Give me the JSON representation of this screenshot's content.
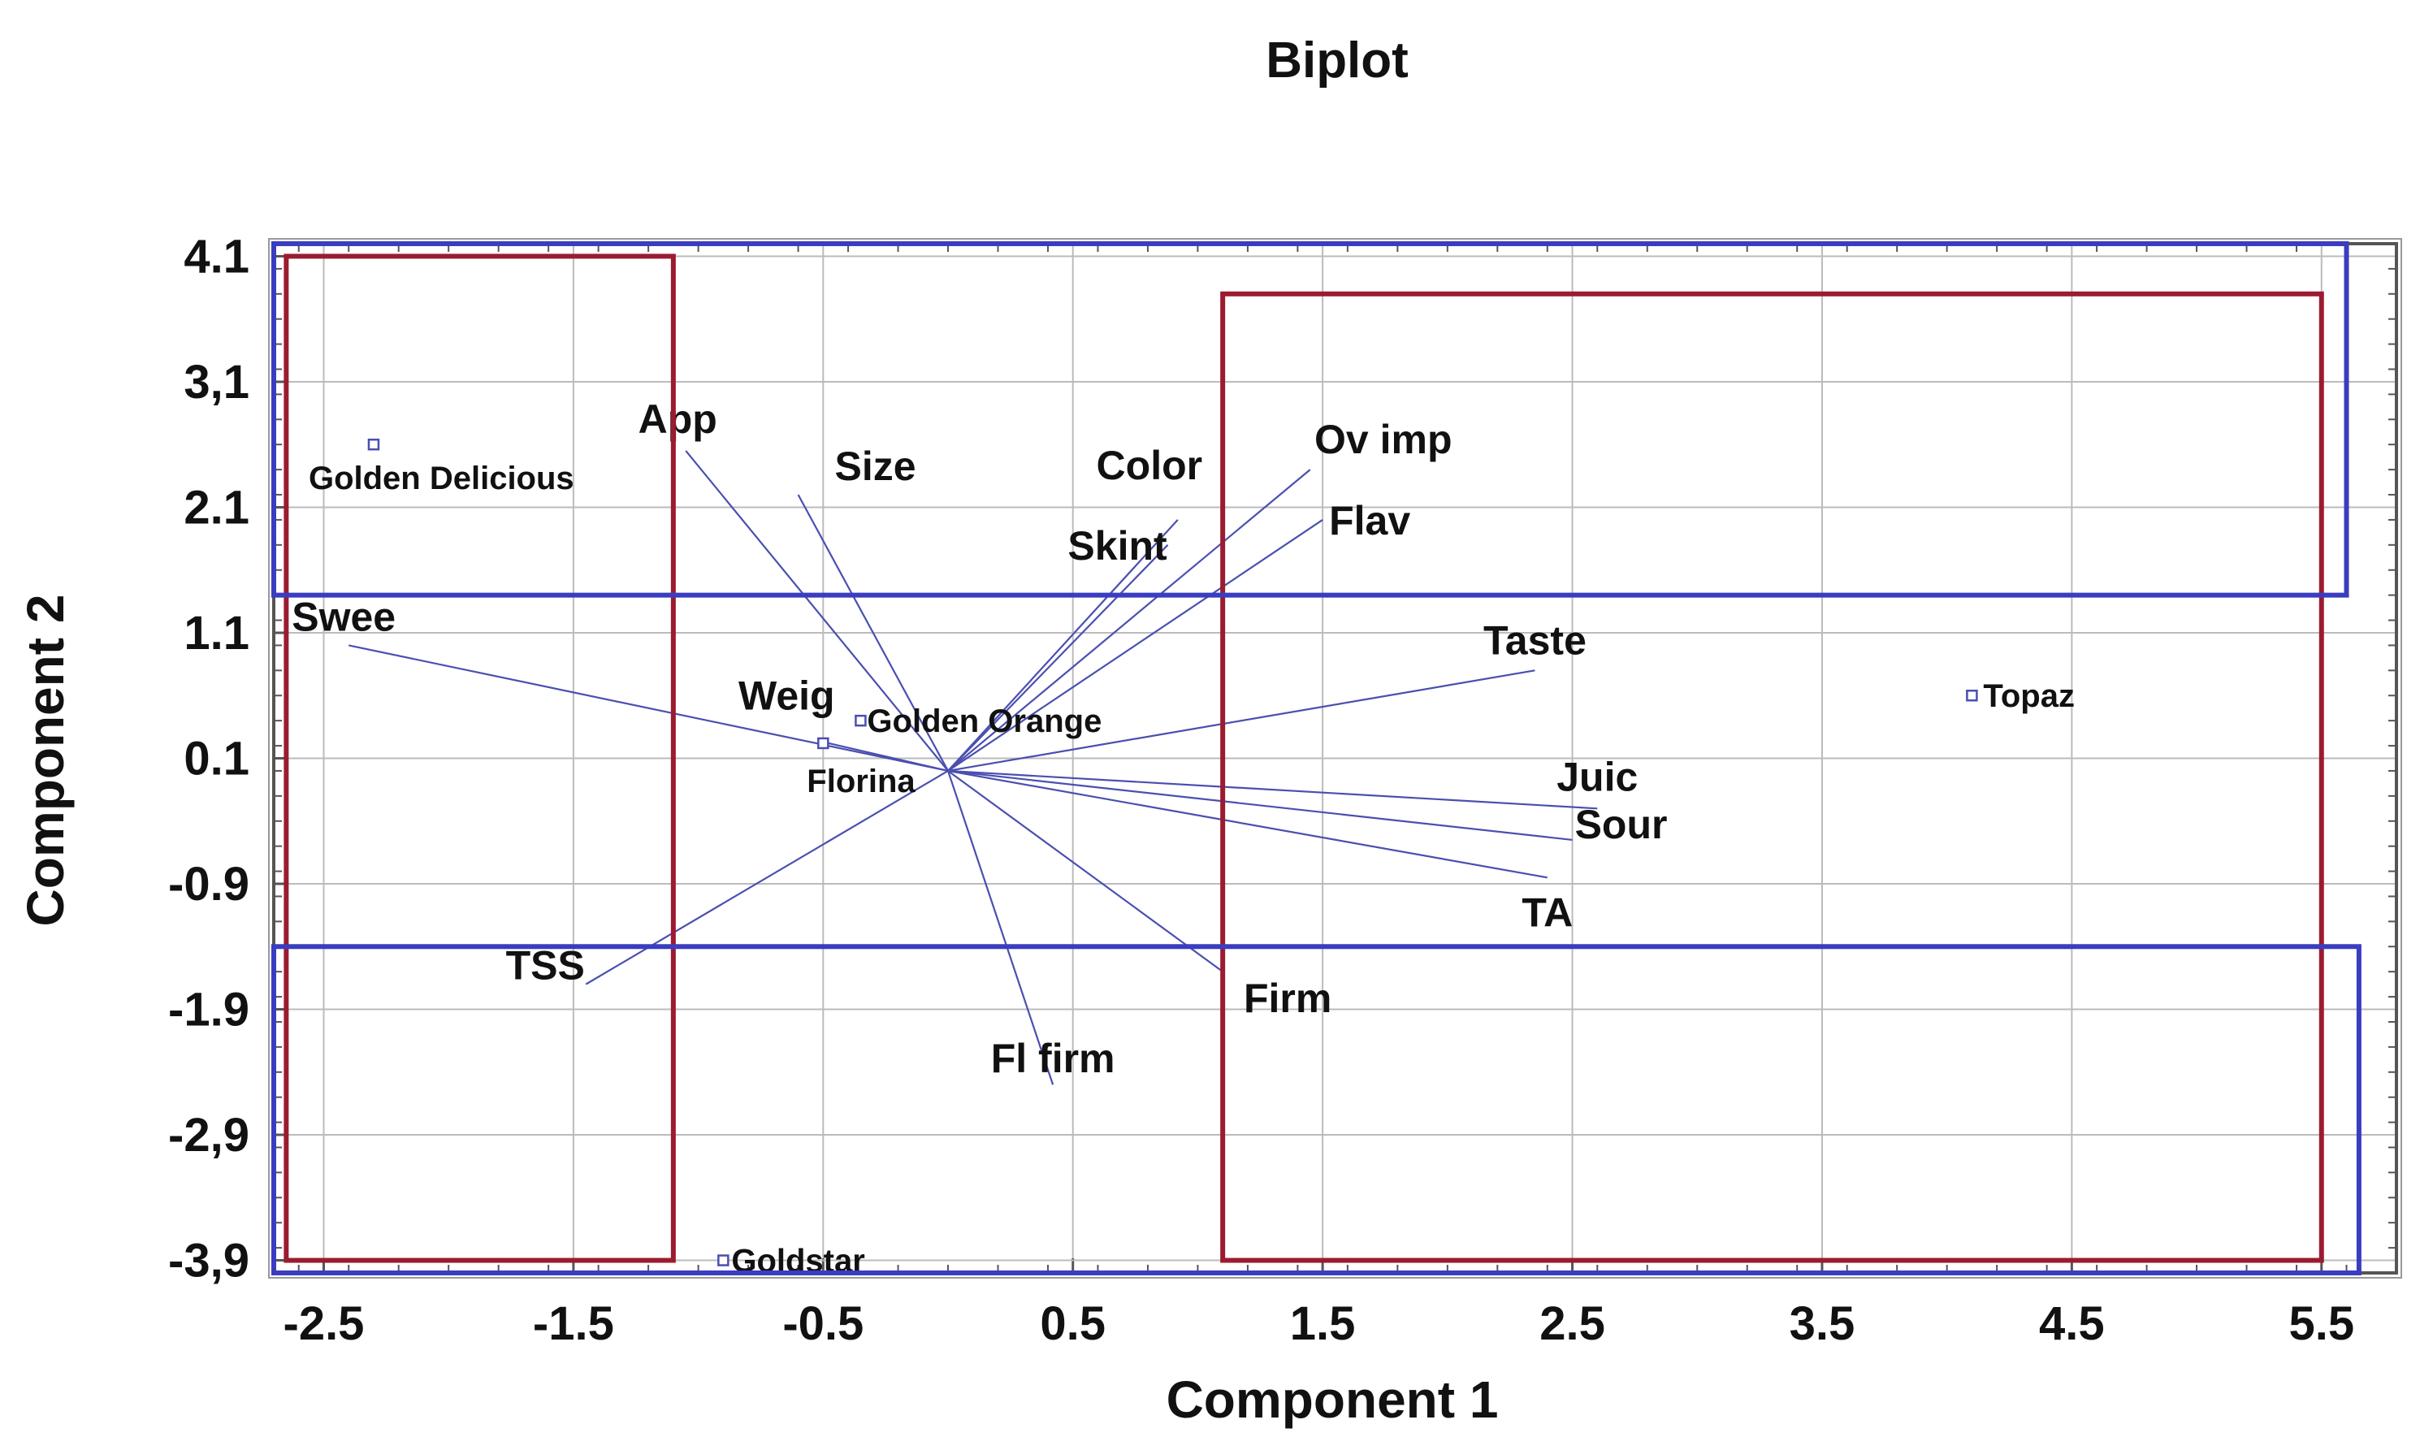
{
  "chart_data": {
    "type": "scatter",
    "title": "Biplot",
    "xlabel": "Component 1",
    "ylabel": "Component 2",
    "xlim": [
      -2.7,
      5.8
    ],
    "ylim": [
      -4.0,
      4.2
    ],
    "xticks": [
      -2.5,
      -1.5,
      -0.5,
      0.5,
      1.5,
      2.5,
      3.5,
      4.5,
      5.5
    ],
    "xtick_labels": [
      "-2.5",
      "-1.5",
      "-0.5",
      "0.5",
      "1.5",
      "2.5",
      "3.5",
      "4.5",
      "5.5"
    ],
    "yticks": [
      4.1,
      3.1,
      2.1,
      1.1,
      0.1,
      -0.9,
      -1.9,
      -2.9,
      -3.9
    ],
    "ytick_labels": [
      "4.1",
      "3,1",
      "2.1",
      "1.1",
      "0.1",
      "-0.9",
      "-1.9",
      "-2,9",
      "-3,9"
    ],
    "grid": true,
    "vector_origin": [
      0.0,
      0.0
    ],
    "vectors": [
      {
        "name": "App",
        "x": -1.05,
        "y": 2.55
      },
      {
        "name": "Size",
        "x": -0.6,
        "y": 2.2
      },
      {
        "name": "Color",
        "x": 0.92,
        "y": 2.0
      },
      {
        "name": "Skint",
        "x": 0.88,
        "y": 1.8
      },
      {
        "name": "Ov imp",
        "x": 1.45,
        "y": 2.4
      },
      {
        "name": "Flav",
        "x": 1.5,
        "y": 2.0
      },
      {
        "name": "Swee",
        "x": -2.4,
        "y": 1.0
      },
      {
        "name": "Taste",
        "x": 2.35,
        "y": 0.8
      },
      {
        "name": "Weig",
        "x": -0.5,
        "y": 0.23
      },
      {
        "name": "Juic",
        "x": 2.6,
        "y": -0.3
      },
      {
        "name": "Sour",
        "x": 2.5,
        "y": -0.55
      },
      {
        "name": "TA",
        "x": 2.4,
        "y": -0.85
      },
      {
        "name": "TSS",
        "x": -1.45,
        "y": -1.7
      },
      {
        "name": "Fl firm",
        "x": 0.42,
        "y": -2.5
      },
      {
        "name": "Firm",
        "x": 1.1,
        "y": -1.6
      }
    ],
    "points": [
      {
        "name": "Golden Delicious",
        "x": -2.3,
        "y": 2.6
      },
      {
        "name": "Golden Orange",
        "x": -0.35,
        "y": 0.4
      },
      {
        "name": "Florina",
        "x": -0.5,
        "y": 0.22
      },
      {
        "name": "Topaz",
        "x": 4.1,
        "y": 0.6
      },
      {
        "name": "Goldstar",
        "x": -0.9,
        "y": -3.9
      }
    ],
    "groups": [
      {
        "color": "#9b1b30",
        "x": [
          -2.65,
          -1.1
        ],
        "y": [
          -3.9,
          4.1
        ]
      },
      {
        "color": "#9b1b30",
        "x": [
          1.1,
          5.5
        ],
        "y": [
          -3.9,
          3.8
        ]
      },
      {
        "color": "#3a3dbf",
        "x": [
          -2.7,
          5.6
        ],
        "y": [
          1.4,
          4.2
        ]
      },
      {
        "color": "#3a3dbf",
        "x": [
          -2.7,
          5.65
        ],
        "y": [
          -4.0,
          -1.4
        ]
      }
    ]
  },
  "colors": {
    "vector": "#4a4fb0",
    "point": "#4a4fb0",
    "grid": "#bbbbbb",
    "frame": "#555555"
  }
}
